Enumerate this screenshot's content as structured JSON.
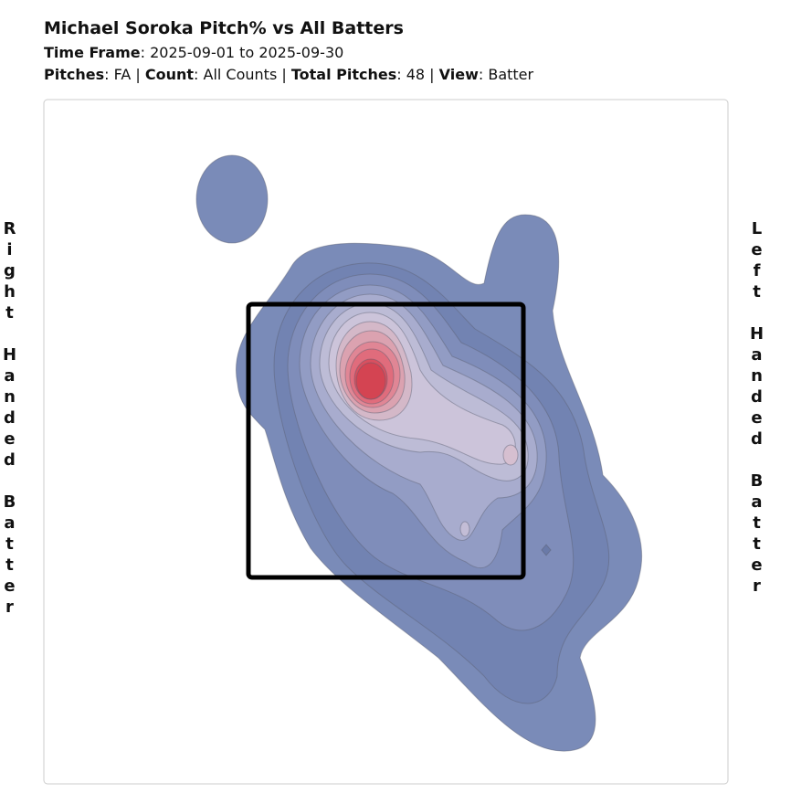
{
  "header": {
    "title": "Michael Soroka Pitch% vs All Batters",
    "time_frame": {
      "label": "Time Frame",
      "value": "2025-09-01 to 2025-09-30"
    },
    "filters": [
      {
        "label": "Pitches",
        "value": "FA"
      },
      {
        "label": "Count",
        "value": "All Counts"
      },
      {
        "label": "Total Pitches",
        "value": 48
      },
      {
        "label": "View",
        "value": "Batter"
      }
    ]
  },
  "side_labels": {
    "left": "Right Handed Batter",
    "right": "Left Handed Batter"
  }
}
